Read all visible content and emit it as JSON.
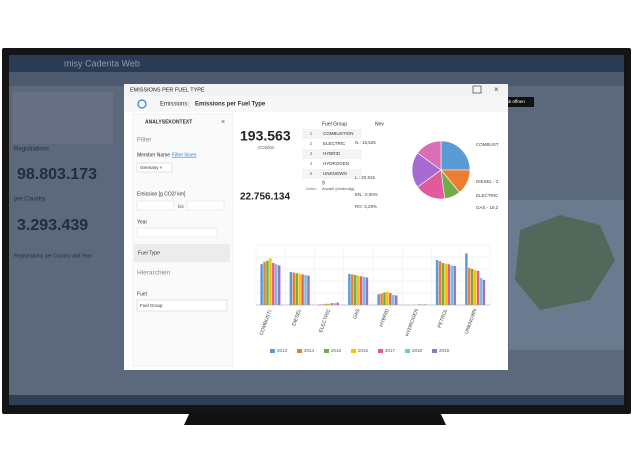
{
  "app": {
    "title": "misy Cadenta Web",
    "panel_title": "Registrations",
    "kpi1": "98.803.173",
    "section2": "per Country",
    "kpi2": "3.293.439",
    "section3": "Registrations per Country and Year"
  },
  "modal": {
    "title": "EMISSIONS PER FUEL TYPE",
    "breadcrumb_root": "Emissions",
    "breadcrumb_page": "Emissions per Fuel Type",
    "tooltip": "In neuem Tab öffnen",
    "context": {
      "header": "ANALYSEKONTEXT",
      "filter": "Filter",
      "member_name": "Member Name",
      "clear_filter": "Filter lösen",
      "chip": "Germany ×",
      "emission": "Emission [g CO2/ km]",
      "to": "bis",
      "year": "Year",
      "fuel_type": "Fuel Type",
      "hierarchies": "Hierarchien",
      "fuel": "Fuel",
      "fuel_group": "Fuel Group"
    },
    "kpi_main": "193.563",
    "kpi_unit": "CO2/km",
    "kpi_second": "22.756.134",
    "table": {
      "headers": [
        "Fuel Group",
        "Nev"
      ],
      "rows": [
        [
          1,
          "COMBUSTION"
        ],
        [
          2,
          "ELECTRIC"
        ],
        [
          3,
          "HYBRID"
        ],
        [
          4,
          "HYDROGEN"
        ],
        [
          5,
          "UNKNOWN"
        ]
      ],
      "count": 9,
      "count_label": "Anzahl (eindeutig)",
      "rows_label": "Zeilen"
    }
  },
  "chart_data": [
    {
      "type": "pie",
      "values": [
        25,
        14,
        9,
        17,
        20,
        15
      ],
      "colors": [
        "#5b9bd5",
        "#ed7d31",
        "#70ad47",
        "#e05a9c",
        "#a66bd3",
        "#d86fb4"
      ],
      "annotations": [
        "N.: 16,525",
        "L.: 20,915",
        "EN.: 0,00%",
        "RO: 5,29%",
        "COMBUST",
        "DIESEL - 2",
        "ELECTRIC",
        "GAS - 16,2"
      ]
    },
    {
      "type": "bar",
      "categories": [
        "COMBUSTI.",
        "DIESEL",
        "ELECTRIC",
        "GAS",
        "HYBRID",
        "HYDROGEN",
        "PETROL",
        "UNKNOWN"
      ],
      "ylim": [
        0,
        100
      ],
      "grid": true,
      "gridlines": [
        0,
        20,
        40,
        60,
        80,
        100
      ],
      "series": [
        {
          "name": "2013",
          "color": "#5b9bd5",
          "values": [
            68,
            55,
            1,
            52,
            18,
            0,
            75,
            86
          ]
        },
        {
          "name": "2014",
          "color": "#ed7d31",
          "values": [
            72,
            54,
            1,
            51,
            19,
            0,
            73,
            62
          ]
        },
        {
          "name": "2015",
          "color": "#70ad47",
          "values": [
            74,
            53,
            2,
            50,
            21,
            0,
            70,
            60
          ]
        },
        {
          "name": "2016",
          "color": "#ffc000",
          "values": [
            78,
            52,
            2,
            49,
            22,
            0,
            69,
            58
          ]
        },
        {
          "name": "2017",
          "color": "#e15b8f",
          "values": [
            70,
            51,
            3,
            48,
            20,
            1,
            68,
            57
          ]
        },
        {
          "name": "2018",
          "color": "#6fc7d6",
          "values": [
            68,
            50,
            3,
            47,
            17,
            1,
            66,
            45
          ]
        },
        {
          "name": "2019",
          "color": "#9b6fd1",
          "values": [
            66,
            49,
            4,
            46,
            16,
            1,
            65,
            42
          ]
        }
      ]
    }
  ]
}
